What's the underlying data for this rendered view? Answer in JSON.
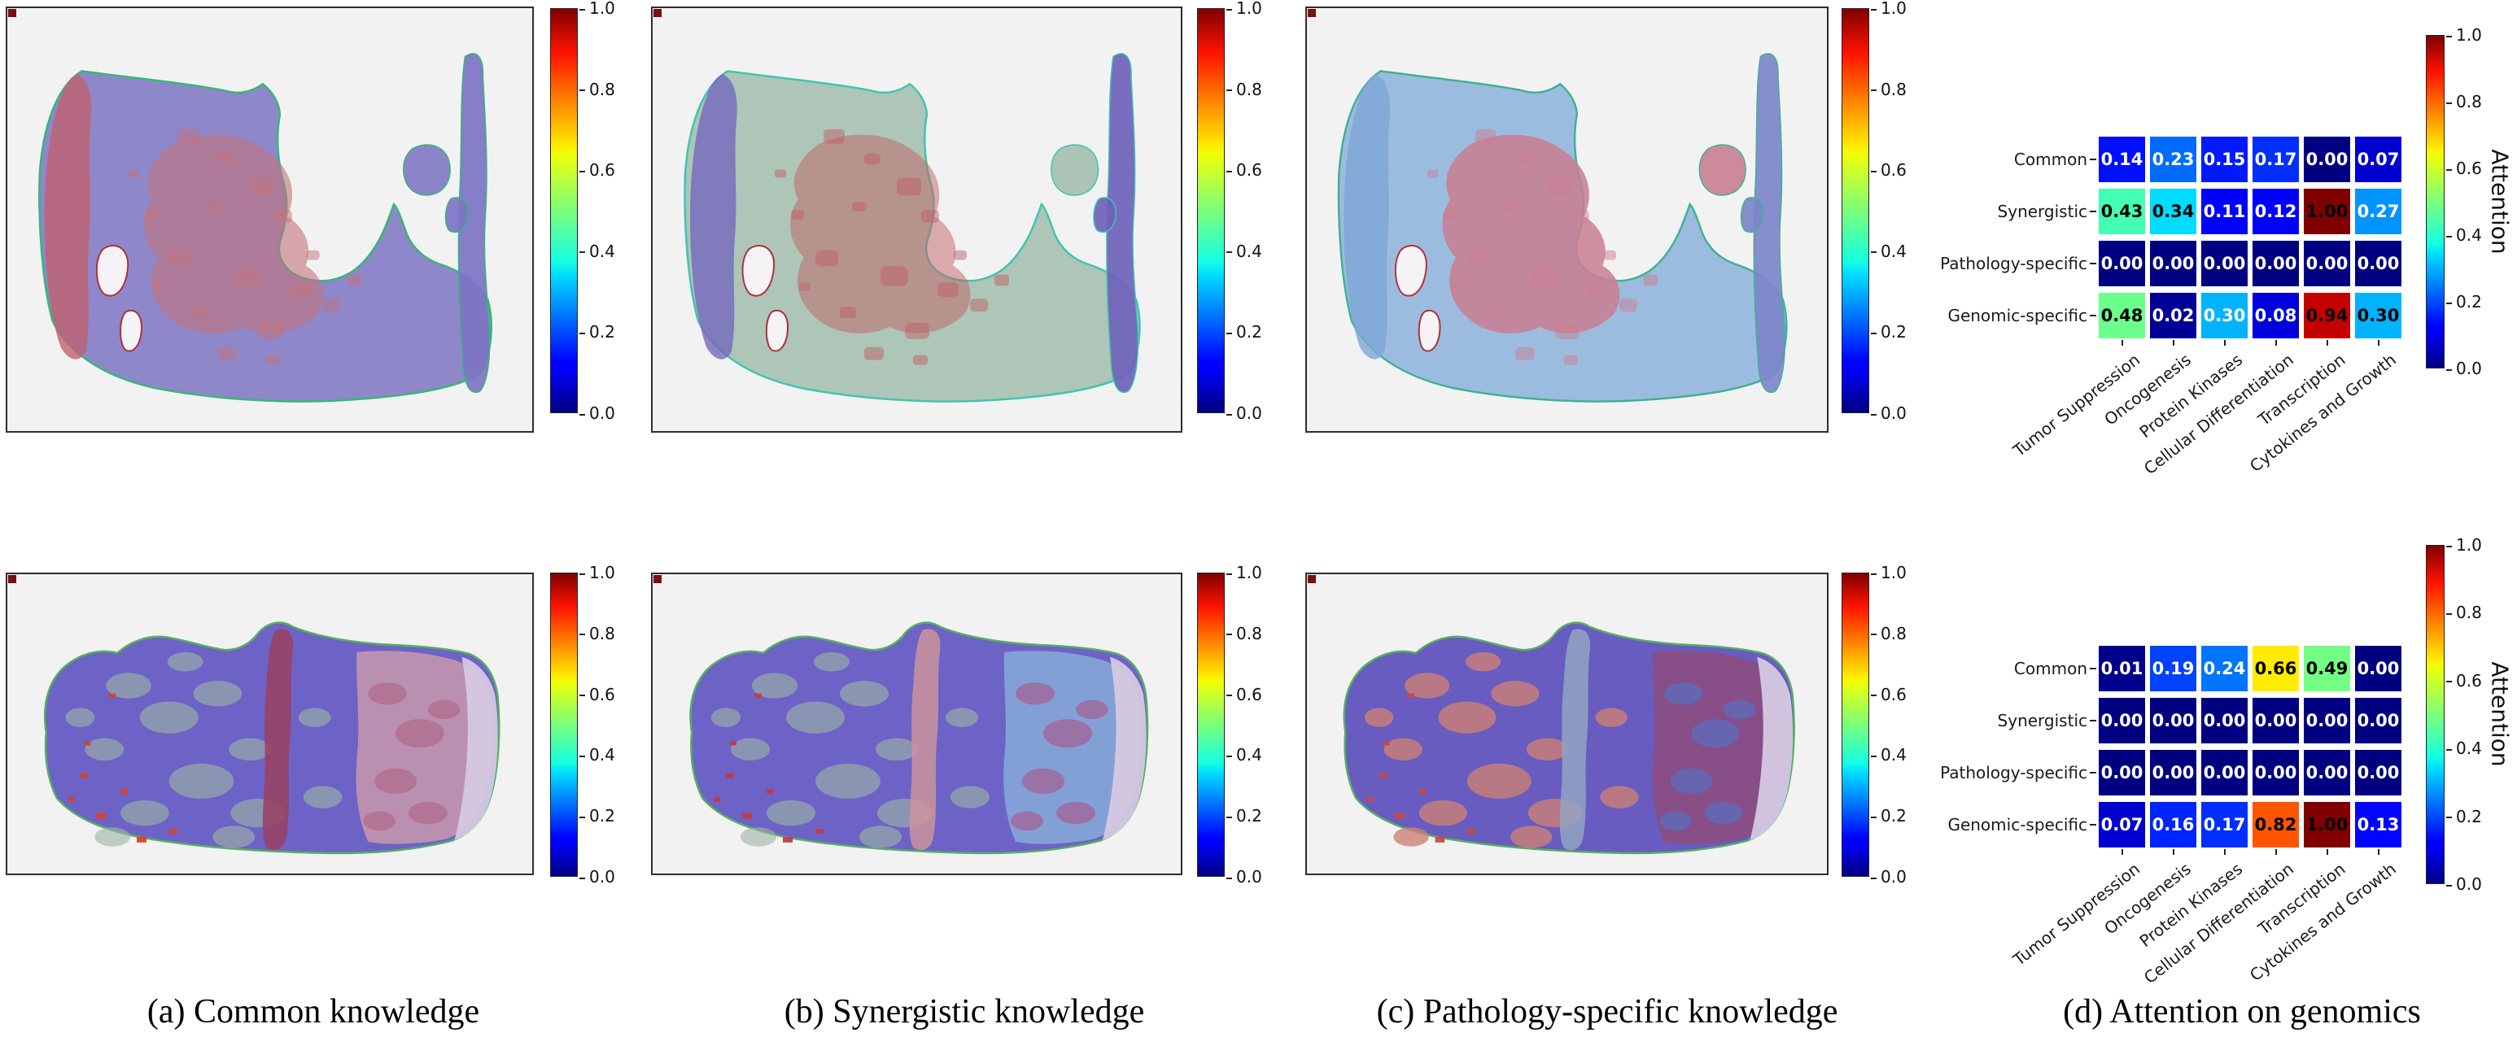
{
  "figure": {
    "captions": [
      "(a) Common knowledge",
      "(b) Synergistic knowledge",
      "(c) Pathology-specific knowledge",
      "(d) Attention on genomics"
    ]
  },
  "colorbar": {
    "ticks": [
      "1.0",
      "0.8",
      "0.6",
      "0.4",
      "0.2",
      "0.0"
    ],
    "label": "Attention",
    "colormap": "jet",
    "range": [
      0,
      1
    ]
  },
  "wsi_panels": [
    {
      "id": "p-r1a",
      "knowledge": "Common",
      "slide": "top",
      "palette": {
        "base": "#8078c4",
        "band": "#c2606e",
        "region": "#c3737c",
        "strip": "#7d74c4",
        "island": "#8078c4",
        "outline": "#34b878"
      }
    },
    {
      "id": "p-r1b",
      "knowledge": "Synergistic",
      "slide": "top",
      "palette": {
        "base": "#a3bfae",
        "band": "#7468bd",
        "region": "#c25f66",
        "strip": "#6e62ba",
        "island": "#a3bfae",
        "outline": "#42c4b0"
      }
    },
    {
      "id": "p-r1c",
      "knowledge": "Pathology-specific",
      "slide": "top",
      "palette": {
        "base": "#90b4dc",
        "band": "#7ea6d6",
        "region": "#c97e90",
        "strip": "#7d86ca",
        "island": "#c97e90",
        "outline": "#3eb294"
      }
    },
    {
      "id": "p-r2a",
      "knowledge": "Common",
      "slide": "bottom",
      "palette": {
        "base": "#5a4fc0",
        "mottle": "#9db5a5",
        "band": "#9a3f60",
        "right": "#c898ac",
        "accent": "#b06a8a",
        "flecks": "#d8402a",
        "outline": "#55b060"
      }
    },
    {
      "id": "p-r2b",
      "knowledge": "Synergistic",
      "slide": "bottom",
      "palette": {
        "base": "#5a4fc0",
        "mottle": "#9db5a5",
        "band": "#cc939b",
        "right": "#86aad8",
        "accent": "#a55e92",
        "flecks": "#c43a48",
        "outline": "#55b060"
      }
    },
    {
      "id": "p-r2c",
      "knowledge": "Pathology-specific",
      "slide": "bottom",
      "palette": {
        "base": "#5447b8",
        "mottle": "#cc8176",
        "band": "#93a3c2",
        "right": "#8d4b7c",
        "accent": "#5a6fc0",
        "flecks": "#cc4a3a",
        "outline": "#55b060"
      }
    }
  ],
  "chart_data": [
    {
      "type": "heatmap",
      "slide": "top",
      "rows": [
        "Common",
        "Synergistic",
        "Pathology-specific",
        "Genomic-specific"
      ],
      "columns": [
        "Tumor Suppression",
        "Oncogenesis",
        "Protein Kinases",
        "Cellular Differentiation",
        "Transcription",
        "Cytokines and Growth"
      ],
      "values": [
        [
          0.14,
          0.23,
          0.15,
          0.17,
          0.0,
          0.07
        ],
        [
          0.43,
          0.34,
          0.11,
          0.12,
          1.0,
          0.27
        ],
        [
          0.0,
          0.0,
          0.0,
          0.0,
          0.0,
          0.0
        ],
        [
          0.48,
          0.02,
          0.3,
          0.08,
          0.94,
          0.3
        ]
      ],
      "black_text": [
        [
          0,
          0,
          0,
          0,
          0,
          0
        ],
        [
          1,
          1,
          0,
          0,
          1,
          0
        ],
        [
          0,
          0,
          0,
          0,
          0,
          0
        ],
        [
          1,
          0,
          0,
          0,
          1,
          1
        ]
      ],
      "colormap": "jet",
      "vmin": 0,
      "vmax": 1,
      "colorbar_label": "Attention",
      "colorbar_ticks": [
        "1.0",
        "0.8",
        "0.6",
        "0.4",
        "0.2",
        "0.0"
      ]
    },
    {
      "type": "heatmap",
      "slide": "bottom",
      "rows": [
        "Common",
        "Synergistic",
        "Pathology-specific",
        "Genomic-specific"
      ],
      "columns": [
        "Tumor Suppression",
        "Oncogenesis",
        "Protein Kinases",
        "Cellular Differentiation",
        "Transcription",
        "Cytokines and Growth"
      ],
      "values": [
        [
          0.01,
          0.19,
          0.24,
          0.66,
          0.49,
          0.0
        ],
        [
          0.0,
          0.0,
          0.0,
          0.0,
          0.0,
          0.0
        ],
        [
          0.0,
          0.0,
          0.0,
          0.0,
          0.0,
          0.0
        ],
        [
          0.07,
          0.16,
          0.17,
          0.82,
          1.0,
          0.13
        ]
      ],
      "black_text": [
        [
          0,
          0,
          0,
          1,
          1,
          0
        ],
        [
          0,
          0,
          0,
          0,
          0,
          0
        ],
        [
          0,
          0,
          0,
          0,
          0,
          0
        ],
        [
          0,
          0,
          0,
          1,
          1,
          0
        ]
      ],
      "colormap": "jet",
      "vmin": 0,
      "vmax": 1,
      "colorbar_label": "Attention",
      "colorbar_ticks": [
        "1.0",
        "0.8",
        "0.6",
        "0.4",
        "0.2",
        "0.0"
      ]
    }
  ]
}
